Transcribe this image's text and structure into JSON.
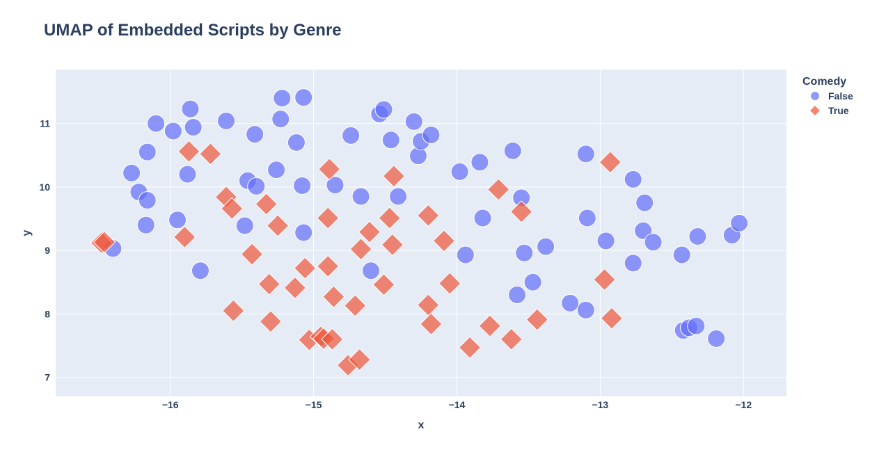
{
  "chart_data": {
    "type": "scatter",
    "title": "UMAP of Embedded Scripts by Genre",
    "xlabel": "x",
    "ylabel": "y",
    "xlim": [
      -16.8,
      -11.7
    ],
    "ylim": [
      6.7,
      11.85
    ],
    "x_ticks": [
      -16,
      -15,
      -14,
      -13,
      -12
    ],
    "x_tick_labels": [
      "−16",
      "−15",
      "−14",
      "−13",
      "−12"
    ],
    "y_ticks": [
      7,
      8,
      9,
      10,
      11
    ],
    "y_tick_labels": [
      "7",
      "8",
      "9",
      "10",
      "11"
    ],
    "grid": true,
    "legend": {
      "title": "Comedy",
      "placement": "top-right"
    },
    "colors": {
      "plot_bg": "#e5ecf6",
      "grid": "#ffffff",
      "text": "#2a3f5f"
    },
    "series": [
      {
        "name": "False",
        "marker": "circle",
        "color": "#636efa",
        "points": [
          [
            -16.4,
            9.03
          ],
          [
            -16.27,
            10.22
          ],
          [
            -16.22,
            9.92
          ],
          [
            -16.16,
            10.55
          ],
          [
            -16.16,
            9.79
          ],
          [
            -16.17,
            9.4
          ],
          [
            -16.1,
            11.0
          ],
          [
            -15.98,
            10.88
          ],
          [
            -15.95,
            9.48
          ],
          [
            -15.88,
            10.2
          ],
          [
            -15.86,
            11.23
          ],
          [
            -15.84,
            10.94
          ],
          [
            -15.79,
            8.68
          ],
          [
            -15.61,
            11.04
          ],
          [
            -15.48,
            9.39
          ],
          [
            -15.46,
            10.1
          ],
          [
            -15.41,
            10.83
          ],
          [
            -15.4,
            10.01
          ],
          [
            -15.26,
            10.27
          ],
          [
            -15.23,
            11.07
          ],
          [
            -15.22,
            11.4
          ],
          [
            -15.12,
            10.7
          ],
          [
            -15.08,
            10.02
          ],
          [
            -15.07,
            11.41
          ],
          [
            -15.07,
            9.28
          ],
          [
            -14.85,
            10.03
          ],
          [
            -14.74,
            10.81
          ],
          [
            -14.67,
            9.85
          ],
          [
            -14.6,
            8.68
          ],
          [
            -14.54,
            11.15
          ],
          [
            -14.51,
            11.22
          ],
          [
            -14.46,
            10.74
          ],
          [
            -14.41,
            9.85
          ],
          [
            -14.3,
            11.03
          ],
          [
            -14.27,
            10.49
          ],
          [
            -14.25,
            10.72
          ],
          [
            -14.18,
            10.82
          ],
          [
            -13.98,
            10.24
          ],
          [
            -13.94,
            8.93
          ],
          [
            -13.84,
            10.39
          ],
          [
            -13.82,
            9.51
          ],
          [
            -13.61,
            10.57
          ],
          [
            -13.58,
            8.3
          ],
          [
            -13.55,
            9.83
          ],
          [
            -13.53,
            8.96
          ],
          [
            -13.47,
            8.5
          ],
          [
            -13.38,
            9.06
          ],
          [
            -13.21,
            8.17
          ],
          [
            -13.1,
            10.52
          ],
          [
            -13.1,
            8.06
          ],
          [
            -13.09,
            9.51
          ],
          [
            -12.96,
            9.15
          ],
          [
            -12.77,
            10.12
          ],
          [
            -12.77,
            8.8
          ],
          [
            -12.7,
            9.31
          ],
          [
            -12.69,
            9.75
          ],
          [
            -12.63,
            9.13
          ],
          [
            -12.43,
            8.93
          ],
          [
            -12.42,
            7.74
          ],
          [
            -12.38,
            7.78
          ],
          [
            -12.33,
            7.81
          ],
          [
            -12.32,
            9.22
          ],
          [
            -12.19,
            7.61
          ],
          [
            -12.08,
            9.24
          ],
          [
            -12.03,
            9.43
          ]
        ]
      },
      {
        "name": "True",
        "marker": "diamond",
        "color": "#ef553b",
        "points": [
          [
            -16.48,
            9.12
          ],
          [
            -16.46,
            9.13
          ],
          [
            -15.9,
            9.21
          ],
          [
            -15.87,
            10.56
          ],
          [
            -15.72,
            10.52
          ],
          [
            -15.61,
            9.84
          ],
          [
            -15.57,
            9.66
          ],
          [
            -15.56,
            8.05
          ],
          [
            -15.43,
            8.94
          ],
          [
            -15.33,
            9.73
          ],
          [
            -15.31,
            8.47
          ],
          [
            -15.3,
            7.88
          ],
          [
            -15.25,
            9.39
          ],
          [
            -15.13,
            8.41
          ],
          [
            -15.06,
            8.72
          ],
          [
            -15.03,
            7.59
          ],
          [
            -14.95,
            7.64
          ],
          [
            -14.93,
            7.61
          ],
          [
            -14.9,
            9.51
          ],
          [
            -14.9,
            8.75
          ],
          [
            -14.89,
            10.28
          ],
          [
            -14.87,
            7.6
          ],
          [
            -14.86,
            8.27
          ],
          [
            -14.76,
            7.19
          ],
          [
            -14.71,
            8.13
          ],
          [
            -14.68,
            7.28
          ],
          [
            -14.67,
            9.02
          ],
          [
            -14.61,
            9.29
          ],
          [
            -14.51,
            8.46
          ],
          [
            -14.47,
            9.51
          ],
          [
            -14.45,
            9.09
          ],
          [
            -14.44,
            10.17
          ],
          [
            -14.2,
            9.55
          ],
          [
            -14.2,
            8.14
          ],
          [
            -14.18,
            7.84
          ],
          [
            -14.09,
            9.15
          ],
          [
            -14.05,
            8.48
          ],
          [
            -13.91,
            7.47
          ],
          [
            -13.77,
            7.81
          ],
          [
            -13.71,
            9.96
          ],
          [
            -13.62,
            7.6
          ],
          [
            -13.55,
            9.61
          ],
          [
            -13.44,
            7.91
          ],
          [
            -12.97,
            8.54
          ],
          [
            -12.93,
            10.39
          ],
          [
            -12.92,
            7.93
          ]
        ]
      }
    ]
  }
}
